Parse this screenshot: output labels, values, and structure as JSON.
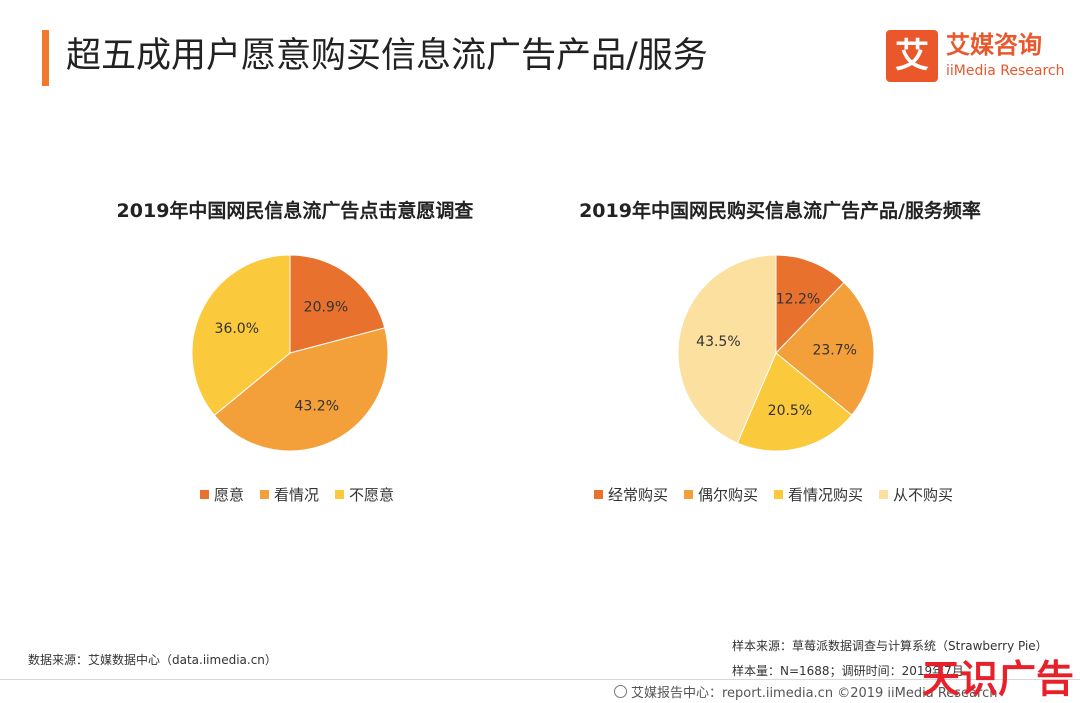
{
  "header": {
    "title": "超五成用户愿意购买信息流广告产品/服务",
    "logo_mark": "艾",
    "logo_cn": "艾媒咨询",
    "logo_en": "iiMedia Research"
  },
  "chart_data": [
    {
      "type": "pie",
      "title": "2019年中国网民信息流广告点击意愿调查",
      "categories": [
        "愿意",
        "看情况",
        "不愿意"
      ],
      "values": [
        20.9,
        43.2,
        36.0
      ],
      "labels": [
        "20.9%",
        "43.2%",
        "36.0%"
      ],
      "colors": [
        "#e8722d",
        "#f4a03a",
        "#fbc93c"
      ],
      "legend_position": "bottom"
    },
    {
      "type": "pie",
      "title": "2019年中国网民购买信息流广告产品/服务频率",
      "categories": [
        "经常购买",
        "偶尔购买",
        "看情况购买",
        "从不购买"
      ],
      "values": [
        12.2,
        23.7,
        20.5,
        43.5
      ],
      "labels": [
        "12.2%",
        "23.7%",
        "20.5%",
        "43.5%"
      ],
      "colors": [
        "#e8722d",
        "#f4a03a",
        "#fbc93c",
        "#fbe0a0"
      ],
      "legend_position": "bottom"
    }
  ],
  "footer": {
    "source_left": "数据来源：艾媒数据中心（data.iimedia.cn）",
    "sample_source": "样本来源：草莓派数据调查与计算系统（Strawberry Pie）",
    "sample_size": "样本量：N=1688；调研时间：2019年7月",
    "report_center": "艾媒报告中心：report.iimedia.cn ©2019 iiMedia Research",
    "watermark": "天识广告"
  }
}
